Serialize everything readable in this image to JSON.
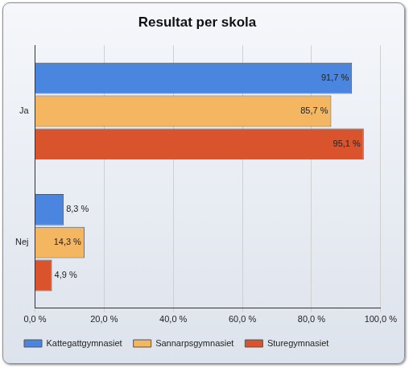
{
  "chart_data": {
    "type": "bar",
    "orientation": "horizontal",
    "title": "Resultat per skola",
    "categories": [
      "Ja",
      "Nej"
    ],
    "series": [
      {
        "name": "Kattegattgymnasiet",
        "color": "#4a86df",
        "values": [
          91.7,
          8.3
        ],
        "value_labels": [
          "91,7 %",
          "8,3 %"
        ]
      },
      {
        "name": "Sannarpsgymnasiet",
        "color": "#f4b660",
        "values": [
          85.7,
          14.3
        ],
        "value_labels": [
          "85,7 %",
          "14,3 %"
        ]
      },
      {
        "name": "Sturegymnasiet",
        "color": "#d9532c",
        "values": [
          95.1,
          4.9
        ],
        "value_labels": [
          "95,1 %",
          "4,9 %"
        ]
      }
    ],
    "xlim": [
      0,
      100
    ],
    "xticks": [
      {
        "value": 0,
        "label": "0,0 %"
      },
      {
        "value": 20,
        "label": "20,0 %"
      },
      {
        "value": 40,
        "label": "40,0 %"
      },
      {
        "value": 60,
        "label": "60,0 %"
      },
      {
        "value": 80,
        "label": "80,0 %"
      },
      {
        "value": 100,
        "label": "100,0 %"
      }
    ],
    "grid": true,
    "legend": "bottom",
    "data_labels": true
  }
}
